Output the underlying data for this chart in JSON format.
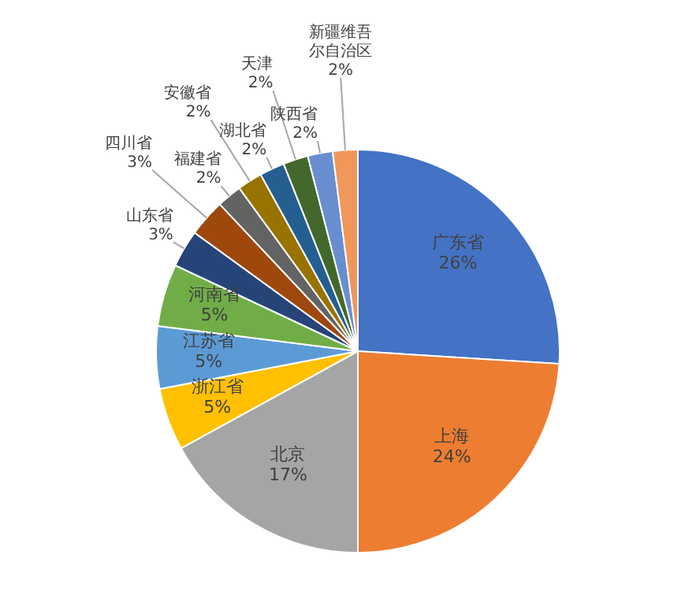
{
  "chart_data": {
    "type": "pie",
    "categories": [
      "广东省",
      "上海",
      "北京",
      "浙江省",
      "江苏省",
      "河南省",
      "山东省",
      "四川省",
      "福建省",
      "安徽省",
      "湖北省",
      "天津",
      "陕西省",
      "新疆维吾尔自治区"
    ],
    "values": [
      26,
      24,
      17,
      5,
      5,
      5,
      3,
      3,
      2,
      2,
      2,
      2,
      2,
      2
    ],
    "colors": [
      "#4472c4",
      "#ed7d31",
      "#a5a5a5",
      "#ffc000",
      "#5b9bd5",
      "#70ad47",
      "#264478",
      "#9e480e",
      "#636363",
      "#997300",
      "#255e91",
      "#43682b",
      "#698ed0",
      "#f1975a"
    ],
    "value_labels": [
      "26%",
      "24%",
      "17%",
      "5%",
      "5%",
      "5%",
      "3%",
      "3%",
      "2%",
      "2%",
      "2%",
      "2%",
      "2%",
      "2%"
    ]
  }
}
